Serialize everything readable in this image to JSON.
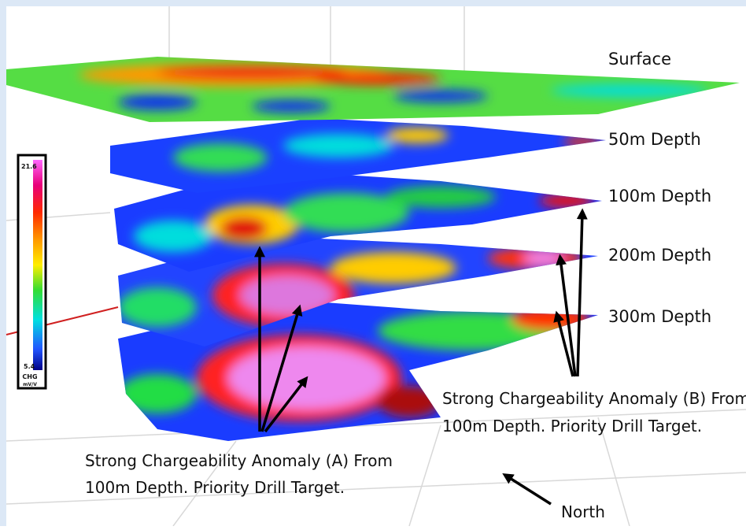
{
  "layers": [
    "Surface",
    "50m Depth",
    "100m Depth",
    "200m Depth",
    "300m Depth"
  ],
  "colorbar": {
    "max": 21.6,
    "min": 5.4,
    "unit": "CHG",
    "subunit": "mV/V"
  },
  "annotations": {
    "anomaly_a": [
      "Strong Chargeability Anomaly (A) From",
      "100m Depth. Priority Drill Target."
    ],
    "anomaly_b": [
      "Strong Chargeability Anomaly (B) From",
      "100m Depth. Priority Drill Target."
    ],
    "north": "North"
  }
}
